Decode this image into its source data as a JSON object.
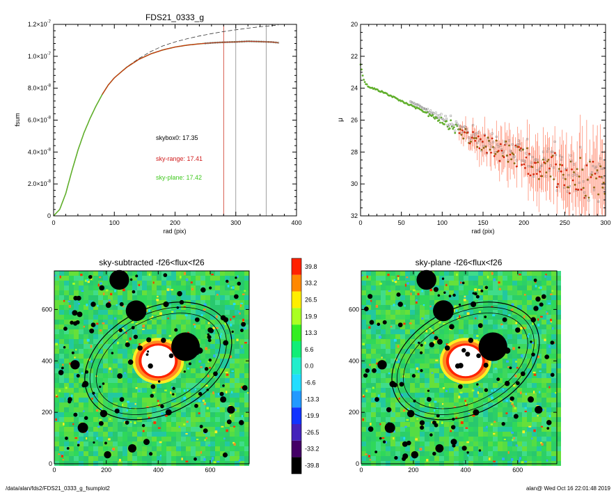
{
  "colors": {
    "curve_green": "#5fae2a",
    "curve_red": "#d42a10",
    "vline_red": "#cc3322",
    "vline_gray": "#888888",
    "ann_black": "#000000",
    "ann_red": "#d01a1a",
    "ann_green": "#3fc81e"
  },
  "chart_data": [
    {
      "type": "line",
      "title": "FDS21_0333_g",
      "xlabel": "rad (pix)",
      "ylabel": "fsum",
      "xlim": [
        0,
        400
      ],
      "ylim": [
        0,
        1.2e-07
      ],
      "x_ticks": [
        0,
        100,
        200,
        300,
        400
      ],
      "y_tick_values": [
        0,
        2e-08,
        4e-08,
        6e-08,
        8e-08,
        1e-07,
        1.2e-07
      ],
      "y_tick_labels": [
        {
          "mant": "0",
          "exp": ""
        },
        {
          "mant": "2.0×10",
          "exp": "-8"
        },
        {
          "mant": "4.0×10",
          "exp": "-8"
        },
        {
          "mant": "6.0×10",
          "exp": "-8"
        },
        {
          "mant": "8.0×10",
          "exp": "-8"
        },
        {
          "mant": "1.0×10",
          "exp": "-7"
        },
        {
          "mant": "1.2×10",
          "exp": "-7"
        }
      ],
      "series": [
        {
          "style": "data",
          "x": [
            0,
            10,
            20,
            30,
            40,
            50,
            60,
            70,
            80,
            90,
            100,
            120,
            140,
            160,
            180,
            200,
            220,
            240,
            260,
            280,
            300,
            320,
            340,
            360,
            370
          ],
          "y": [
            0,
            4e-09,
            1.4e-08,
            2.8e-08,
            4.1e-08,
            5.2e-08,
            6.1e-08,
            6.9e-08,
            7.6e-08,
            8.2e-08,
            8.65e-08,
            9.3e-08,
            9.8e-08,
            1.015e-07,
            1.04e-07,
            1.058e-07,
            1.07e-07,
            1.078e-07,
            1.084e-07,
            1.088e-07,
            1.09e-07,
            1.094e-07,
            1.092e-07,
            1.089e-07,
            1.085e-07
          ]
        },
        {
          "style": "dashed",
          "x": [
            100,
            120,
            140,
            160,
            180,
            200,
            220,
            240,
            260,
            280,
            300,
            320,
            340,
            360,
            370
          ],
          "y": [
            8.65e-08,
            9.32e-08,
            9.85e-08,
            1.03e-07,
            1.065e-07,
            1.09e-07,
            1.11e-07,
            1.127e-07,
            1.142e-07,
            1.155e-07,
            1.166e-07,
            1.176e-07,
            1.185e-07,
            1.192e-07,
            1.196e-07
          ]
        }
      ],
      "vlines": [
        {
          "x": 280,
          "color": "red"
        },
        {
          "x": 300,
          "color": "gray"
        },
        {
          "x": 350,
          "color": "gray"
        }
      ],
      "annotations": [
        {
          "text": "skybox0: 17.35",
          "color": "black"
        },
        {
          "text": "sky-range: 17.41",
          "color": "red"
        },
        {
          "text": "sky-plane: 17.42",
          "color": "green"
        }
      ]
    },
    {
      "type": "scatter",
      "title": "",
      "xlabel": "rad (pix)",
      "ylabel": "μ",
      "xlim": [
        0,
        300
      ],
      "ylim": [
        32,
        20
      ],
      "y_reversed": true,
      "x_ticks": [
        0,
        50,
        100,
        150,
        200,
        250,
        300
      ],
      "y_ticks": [
        20,
        22,
        24,
        26,
        28,
        30,
        32
      ],
      "profile": {
        "x": [
          0,
          3,
          6,
          10,
          15,
          20,
          30,
          50,
          75,
          100,
          125,
          150,
          175,
          200,
          225,
          250,
          275,
          300
        ],
        "y": [
          22.5,
          23.3,
          23.7,
          23.9,
          24.0,
          24.1,
          24.3,
          24.8,
          25.4,
          26.0,
          26.8,
          27.4,
          28.0,
          28.5,
          28.9,
          29.3,
          29.7,
          30.0
        ]
      }
    },
    {
      "type": "heatmap",
      "title": "sky-subtracted -f26<flux<f26",
      "xlim": [
        0,
        750
      ],
      "ylim": [
        0,
        750
      ],
      "x_ticks": [
        0,
        200,
        400,
        600
      ],
      "y_ticks": [
        0,
        200,
        400,
        600
      ]
    },
    {
      "type": "heatmap",
      "title": "sky-plane -f26<flux<f26",
      "xlim": [
        0,
        750
      ],
      "ylim": [
        0,
        750
      ],
      "x_ticks": [
        0,
        200,
        400,
        600
      ],
      "y_ticks": [
        0,
        200,
        400,
        600
      ]
    }
  ],
  "colorbar": {
    "levels": [
      "39.8",
      "33.2",
      "26.5",
      "19.9",
      "13.3",
      "6.6",
      "0.0",
      "-6.6",
      "-13.3",
      "-19.9",
      "-26.5",
      "-33.2",
      "-39.8"
    ],
    "colors": [
      "#ff2200",
      "#ff8800",
      "#ffee00",
      "#aaff22",
      "#33ee22",
      "#11ee77",
      "#22eecc",
      "#22ddff",
      "#2299ff",
      "#1133ff",
      "#4422bb",
      "#440066",
      "#000000"
    ]
  },
  "footer": {
    "left": "/data/alan/fds2/FDS21_0333_g_fsumplot2",
    "right": "alan@  Wed Oct 16 22:01:48 2019"
  }
}
